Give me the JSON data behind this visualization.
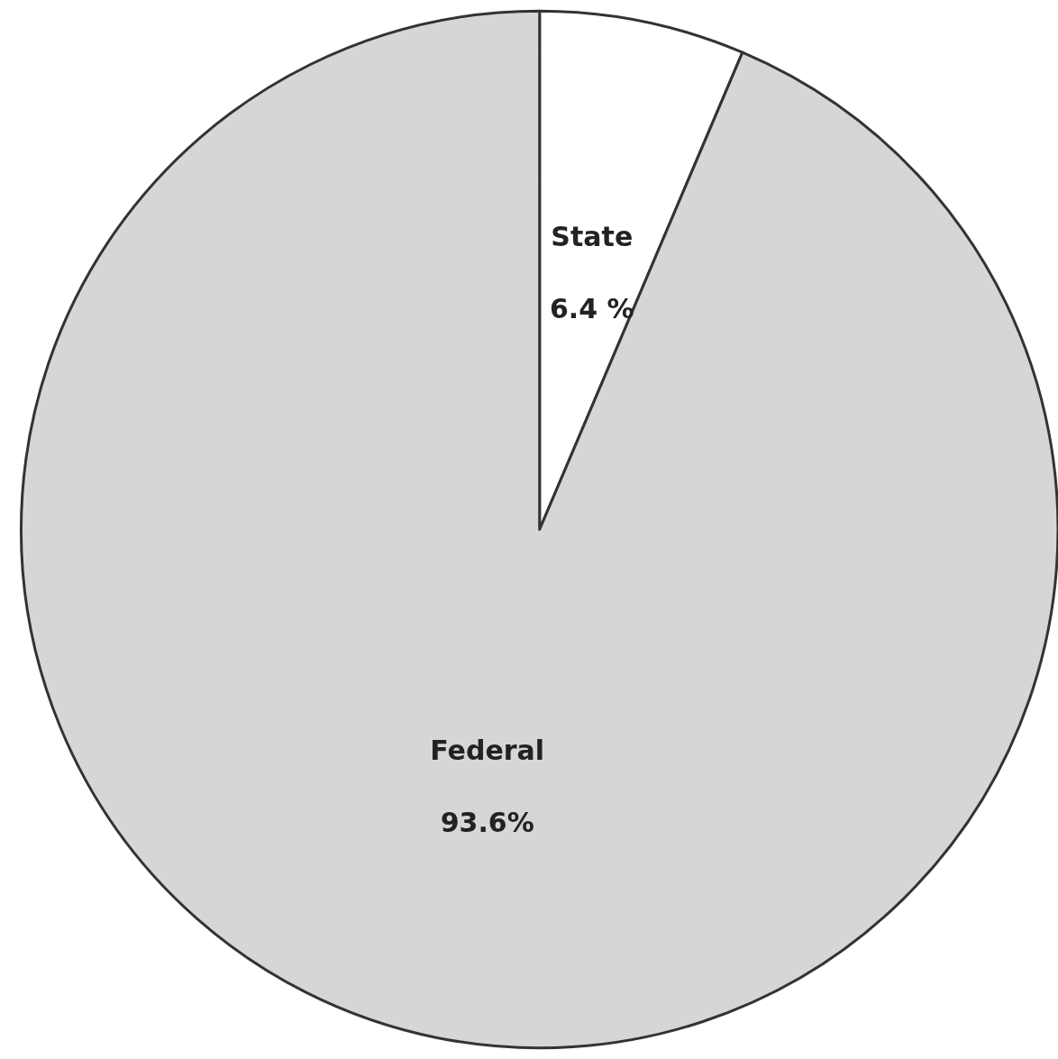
{
  "chart_data": {
    "type": "pie",
    "categories": [
      "State",
      "Federal"
    ],
    "values": [
      6.4,
      93.6
    ],
    "value_labels": [
      "6.4 %",
      "93.6%"
    ],
    "colors": [
      "#ffffff",
      "#d6d6d6"
    ],
    "legend": false
  }
}
